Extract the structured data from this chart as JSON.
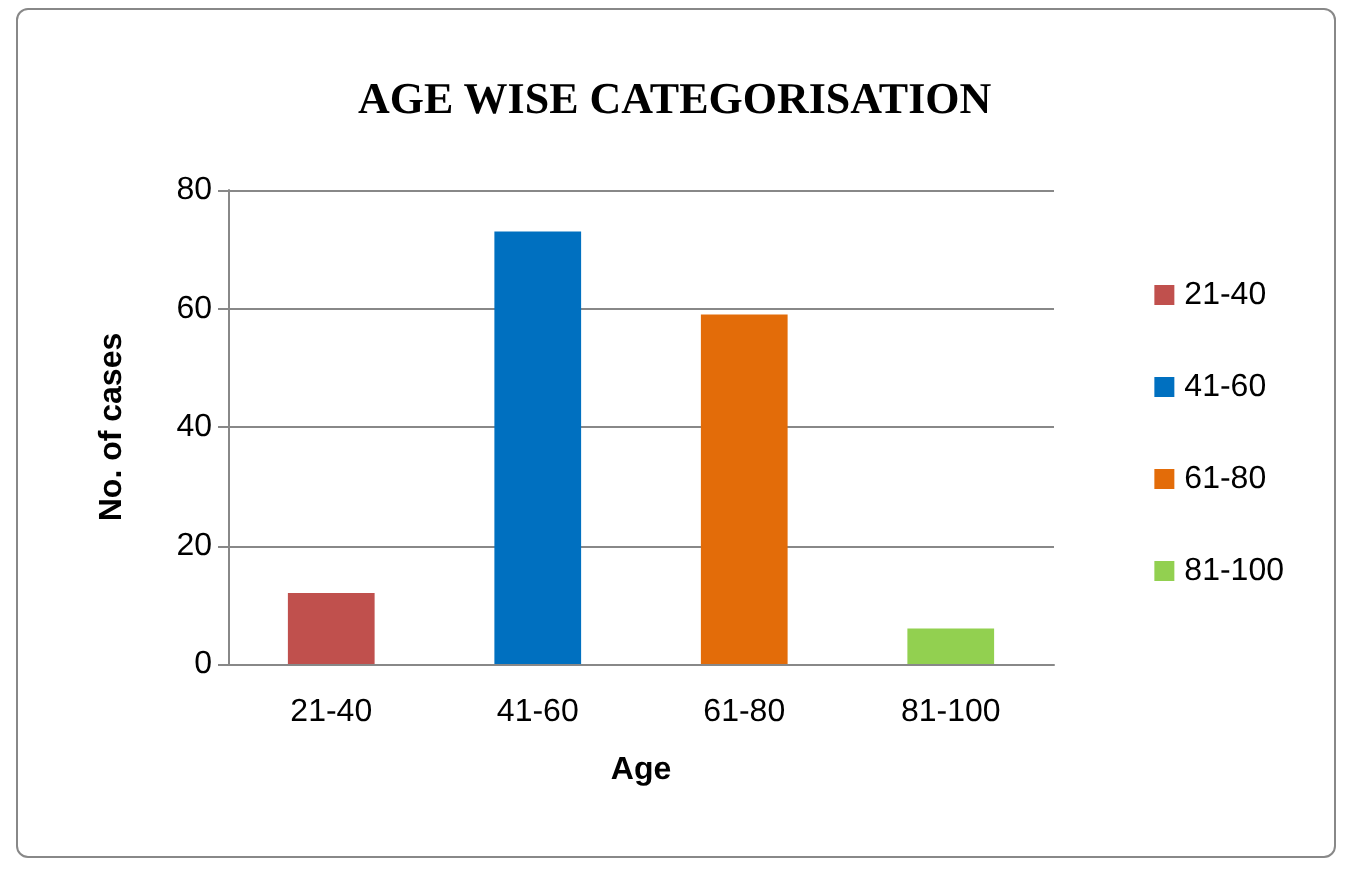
{
  "chart_data": {
    "type": "bar",
    "title": "AGE WISE CATEGORISATION",
    "xlabel": "Age",
    "ylabel": "No. of cases",
    "categories": [
      "21-40",
      "41-60",
      "61-80",
      "81-100"
    ],
    "series": [
      {
        "name": "21-40",
        "color": "#c0504d",
        "values": [
          12,
          null,
          null,
          null
        ]
      },
      {
        "name": "41-60",
        "color": "#0070c0",
        "values": [
          null,
          73,
          null,
          null
        ]
      },
      {
        "name": "61-80",
        "color": "#e36c09",
        "values": [
          null,
          null,
          59,
          null
        ]
      },
      {
        "name": "81-100",
        "color": "#92d050",
        "values": [
          null,
          null,
          null,
          6
        ]
      }
    ],
    "ylim": [
      0,
      80
    ],
    "yticks": [
      0,
      20,
      40,
      60,
      80
    ],
    "grid": "y",
    "legend": "right"
  }
}
